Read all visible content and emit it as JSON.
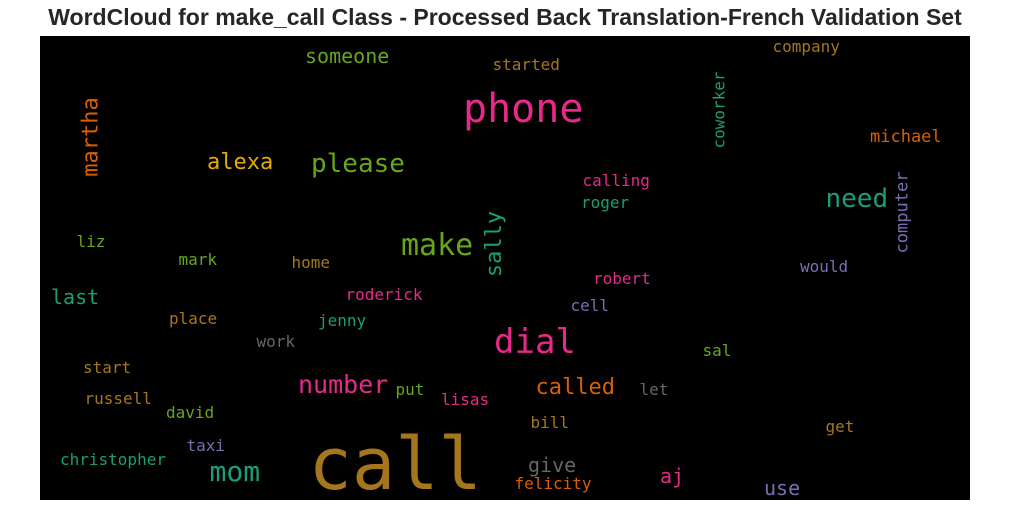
{
  "title": "WordCloud for make_call Class - Processed Back Translation-French Validation Set",
  "chart_data": {
    "type": "wordcloud",
    "title": "WordCloud for make_call Class - Processed Back Translation-French Validation Set",
    "words": [
      {
        "text": "call",
        "color": "#a6761d"
      },
      {
        "text": "phone",
        "color": "#e7298a"
      },
      {
        "text": "dial",
        "color": "#e7298a"
      },
      {
        "text": "make",
        "color": "#66a61e"
      },
      {
        "text": "please",
        "color": "#66a61e"
      },
      {
        "text": "mom",
        "color": "#1b9e77"
      },
      {
        "text": "need",
        "color": "#1b9e77"
      },
      {
        "text": "number",
        "color": "#e7298a"
      },
      {
        "text": "sally",
        "color": "#1b9e77"
      },
      {
        "text": "called",
        "color": "#d95f02"
      },
      {
        "text": "martha",
        "color": "#d95f02"
      },
      {
        "text": "alexa",
        "color": "#e6ab02"
      },
      {
        "text": "someone",
        "color": "#66a61e"
      },
      {
        "text": "last",
        "color": "#1b9e77"
      },
      {
        "text": "give",
        "color": "#666666"
      },
      {
        "text": "use",
        "color": "#7570b3"
      },
      {
        "text": "aj",
        "color": "#e7298a"
      },
      {
        "text": "computer",
        "color": "#7570b3"
      },
      {
        "text": "coworker",
        "color": "#1b9e77"
      },
      {
        "text": "michael",
        "color": "#d95f02"
      },
      {
        "text": "company",
        "color": "#a6761d"
      },
      {
        "text": "started",
        "color": "#a6761d"
      },
      {
        "text": "calling",
        "color": "#e7298a"
      },
      {
        "text": "roger",
        "color": "#1b9e77"
      },
      {
        "text": "robert",
        "color": "#e7298a"
      },
      {
        "text": "roderick",
        "color": "#e7298a"
      },
      {
        "text": "would",
        "color": "#7570b3"
      },
      {
        "text": "home",
        "color": "#a6761d"
      },
      {
        "text": "mark",
        "color": "#66a61e"
      },
      {
        "text": "liz",
        "color": "#66a61e"
      },
      {
        "text": "place",
        "color": "#a6761d"
      },
      {
        "text": "jenny",
        "color": "#1b9e77"
      },
      {
        "text": "cell",
        "color": "#7570b3"
      },
      {
        "text": "work",
        "color": "#666666"
      },
      {
        "text": "sal",
        "color": "#66a61e"
      },
      {
        "text": "start",
        "color": "#a6761d"
      },
      {
        "text": "put",
        "color": "#66a61e"
      },
      {
        "text": "lisas",
        "color": "#e7298a"
      },
      {
        "text": "let",
        "color": "#666666"
      },
      {
        "text": "russell",
        "color": "#a6761d"
      },
      {
        "text": "david",
        "color": "#66a61e"
      },
      {
        "text": "bill",
        "color": "#a6761d"
      },
      {
        "text": "get",
        "color": "#a6761d"
      },
      {
        "text": "taxi",
        "color": "#7570b3"
      },
      {
        "text": "christopher",
        "color": "#1b9e77"
      },
      {
        "text": "felicity",
        "color": "#d95f02"
      }
    ]
  }
}
